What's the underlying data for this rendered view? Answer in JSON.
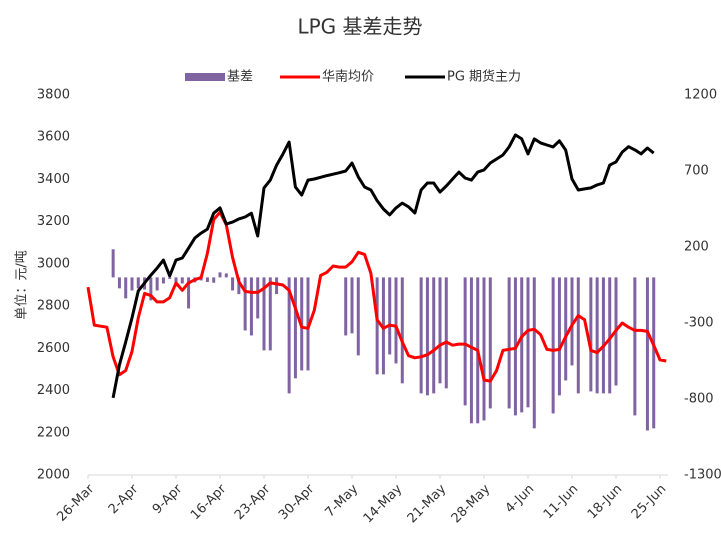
{
  "chart_data": {
    "type": "bar_line",
    "title": "LPG 基差走势",
    "y_label": "单位：元/吨",
    "x": [
      "26-Mar",
      "27-Mar",
      "28-Mar",
      "29-Mar",
      "30-Mar",
      "31-Mar",
      "1-Apr",
      "2-Apr",
      "3-Apr",
      "4-Apr",
      "5-Apr",
      "6-Apr",
      "7-Apr",
      "8-Apr",
      "9-Apr",
      "10-Apr",
      "11-Apr",
      "12-Apr",
      "13-Apr",
      "14-Apr",
      "15-Apr",
      "16-Apr",
      "17-Apr",
      "18-Apr",
      "19-Apr",
      "20-Apr",
      "21-Apr",
      "22-Apr",
      "23-Apr",
      "24-Apr",
      "25-Apr",
      "26-Apr",
      "27-Apr",
      "28-Apr",
      "29-Apr",
      "30-Apr",
      "1-May",
      "2-May",
      "3-May",
      "4-May",
      "5-May",
      "6-May",
      "7-May",
      "8-May",
      "9-May",
      "10-May",
      "11-May",
      "12-May",
      "13-May",
      "14-May",
      "15-May",
      "16-May",
      "17-May",
      "18-May",
      "19-May",
      "20-May",
      "21-May",
      "22-May",
      "23-May",
      "24-May",
      "25-May",
      "26-May",
      "27-May",
      "28-May",
      "29-May",
      "30-May",
      "31-May",
      "1-Jun",
      "2-Jun",
      "3-Jun",
      "4-Jun",
      "5-Jun",
      "6-Jun",
      "7-Jun",
      "8-Jun",
      "9-Jun",
      "10-Jun",
      "11-Jun",
      "12-Jun",
      "13-Jun",
      "14-Jun",
      "15-Jun",
      "16-Jun",
      "17-Jun",
      "18-Jun",
      "19-Jun",
      "20-Jun",
      "21-Jun",
      "22-Jun",
      "23-Jun",
      "24-Jun",
      "25-Jun",
      "26-Jun",
      "27-Jun"
    ],
    "xticks": [
      "26-Mar",
      "2-Apr",
      "9-Apr",
      "16-Apr",
      "23-Apr",
      "30-Apr",
      "7-May",
      "14-May",
      "21-May",
      "28-May",
      "4-Jun",
      "11-Jun",
      "18-Jun",
      "25-Jun"
    ],
    "ylim": [
      2000,
      3800
    ],
    "yticks": [
      2000,
      2200,
      2400,
      2600,
      2800,
      3000,
      3200,
      3400,
      3600,
      3800
    ],
    "y2lim": [
      -1300,
      1200
    ],
    "y2ticks": [
      -1300,
      -800,
      -300,
      200,
      700,
      1200
    ],
    "series": [
      {
        "name": "基差",
        "type": "bar",
        "axis": "y2",
        "color": "#8064a2",
        "values": [
          null,
          null,
          null,
          null,
          185,
          -72,
          -138,
          -86,
          -72,
          -80,
          -151,
          -86,
          -40,
          -10,
          -60,
          -40,
          -204,
          -33,
          -20,
          -30,
          -35,
          33,
          26,
          -86,
          -110,
          -349,
          -382,
          -270,
          -480,
          -480,
          -110,
          null,
          -763,
          -664,
          -612,
          -612,
          null,
          null,
          null,
          null,
          null,
          -382,
          -368,
          -513,
          null,
          null,
          -638,
          -638,
          -507,
          -566,
          -697,
          null,
          null,
          -763,
          -776,
          -763,
          -697,
          -730,
          null,
          null,
          -842,
          -960,
          -960,
          -941,
          -862,
          null,
          null,
          -862,
          -908,
          -888,
          -855,
          -993,
          null,
          null,
          -895,
          -776,
          -678,
          -579,
          -763,
          null,
          -750,
          -763,
          -763,
          -763,
          -711,
          null,
          null,
          -908,
          null,
          -1007,
          -993,
          null,
          null,
          null
        ]
      },
      {
        "name": "华南均价",
        "type": "line",
        "color": "#ff0000",
        "values": [
          2890,
          2710,
          2705,
          2700,
          2560,
          2475,
          2495,
          2585,
          2745,
          2860,
          2850,
          2820,
          2820,
          2840,
          2910,
          2875,
          2910,
          2925,
          2935,
          3050,
          3210,
          3245,
          3185,
          3030,
          2915,
          2870,
          2865,
          2865,
          2885,
          2910,
          2905,
          2900,
          2875,
          2790,
          2700,
          2695,
          2780,
          2945,
          2960,
          2990,
          2985,
          2985,
          3010,
          3055,
          3045,
          2955,
          2735,
          2695,
          2710,
          2705,
          2630,
          2565,
          2555,
          2560,
          2570,
          2590,
          2615,
          2630,
          2615,
          2620,
          2620,
          2605,
          2590,
          2450,
          2445,
          2495,
          2590,
          2595,
          2600,
          2655,
          2685,
          2690,
          2665,
          2595,
          2590,
          2595,
          2655,
          2710,
          2755,
          2735,
          2590,
          2580,
          2610,
          2645,
          2685,
          2720,
          2700,
          2685,
          2685,
          2680,
          2615,
          2545,
          2540,
          null
        ]
      },
      {
        "name": "PG 期货主力",
        "type": "line",
        "color": "#000000",
        "values": [
          null,
          null,
          null,
          null,
          2365,
          2521,
          2630,
          2744,
          2872,
          2910,
          2947,
          2980,
          3018,
          2943,
          3018,
          3028,
          3075,
          3123,
          3146,
          3165,
          3240,
          3265,
          3189,
          3198,
          3213,
          3222,
          3240,
          3132,
          3360,
          3397,
          3468,
          3520,
          3577,
          3364,
          3326,
          3397,
          3402,
          3410,
          3418,
          3425,
          3432,
          3440,
          3478,
          3412,
          3364,
          3350,
          3300,
          3260,
          3232,
          3265,
          3288,
          3270,
          3241,
          3350,
          3383,
          3383,
          3340,
          3369,
          3402,
          3435,
          3407,
          3397,
          3435,
          3445,
          3478,
          3497,
          3516,
          3554,
          3611,
          3592,
          3521,
          3592,
          3573,
          3563,
          3554,
          3583,
          3539,
          3402,
          3350,
          3355,
          3360,
          3374,
          3383,
          3468,
          3483,
          3530,
          3555,
          3540,
          3521,
          3549,
          3525,
          null,
          null,
          null
        ]
      }
    ]
  }
}
